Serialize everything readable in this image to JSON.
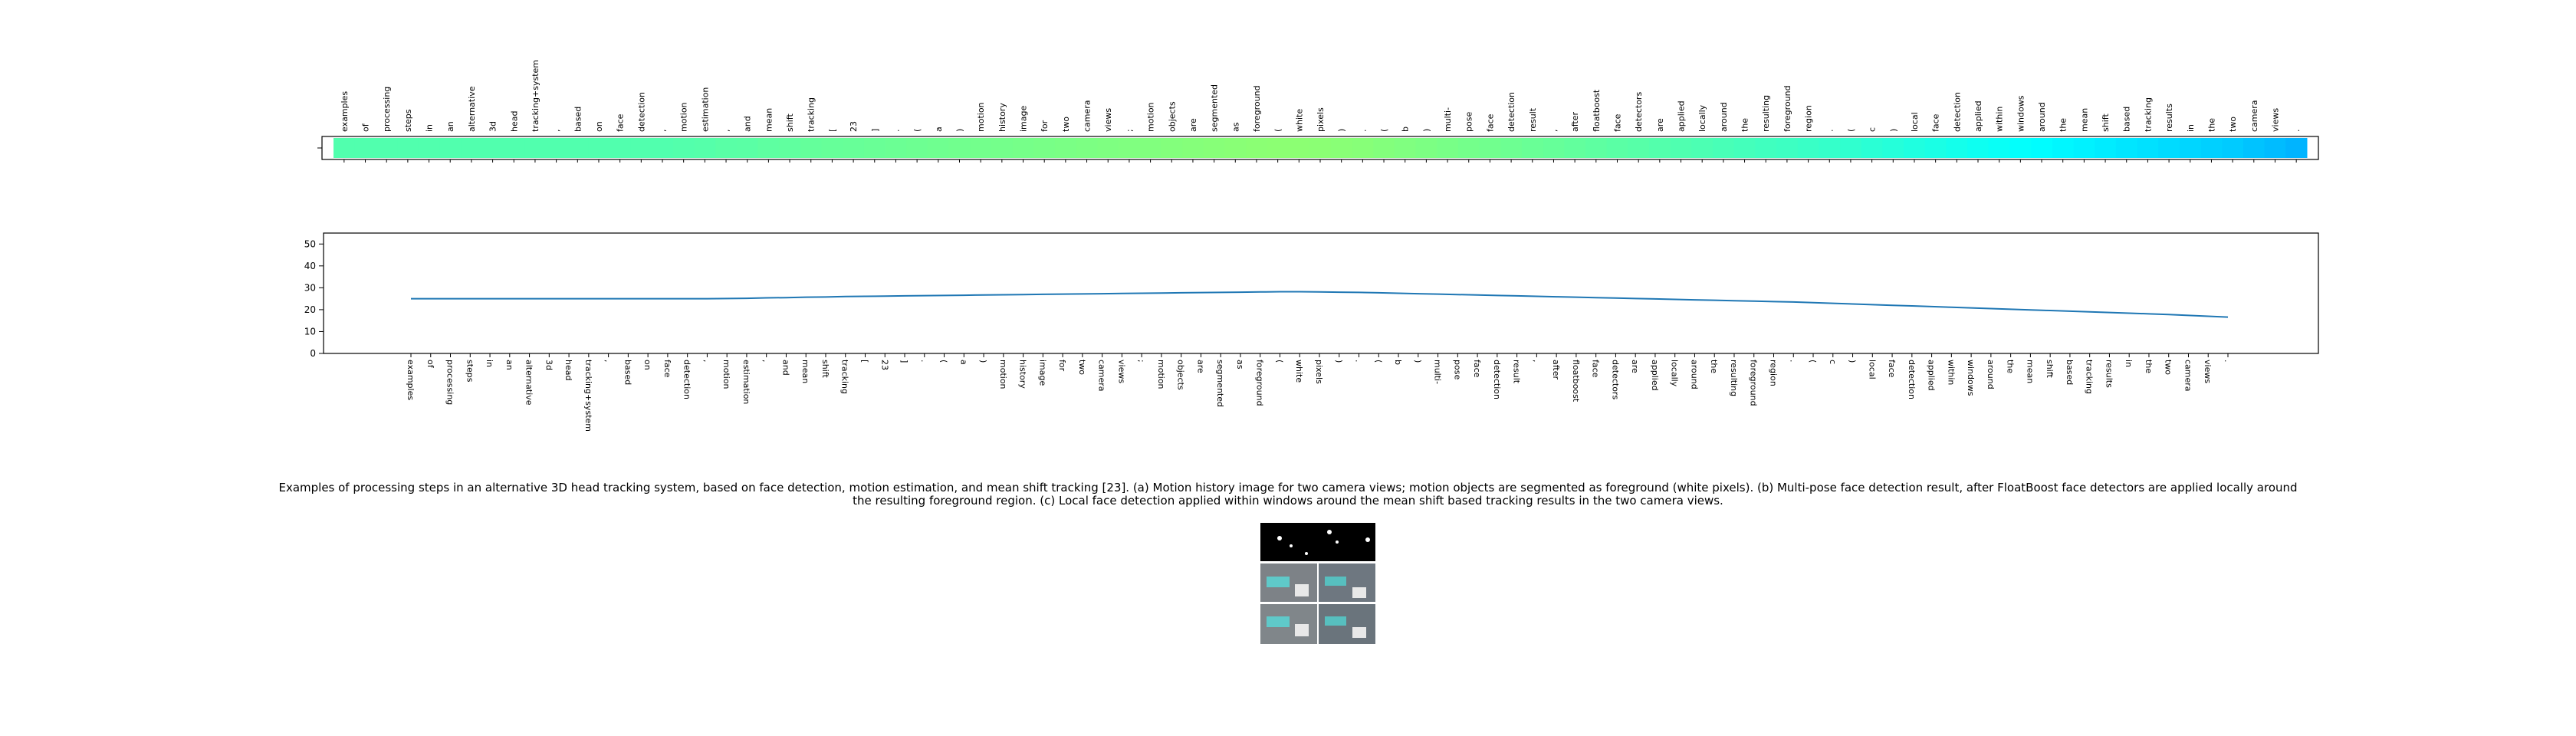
{
  "chart_data": [
    {
      "type": "heatmap",
      "colormap": "jet",
      "categories": [
        "examples",
        "of",
        "processing",
        "steps",
        "in",
        "an",
        "alternative",
        "3d",
        "head",
        "tracking+system",
        ",",
        "based",
        "on",
        "face",
        "detection",
        ",",
        "motion",
        "estimation",
        ",",
        "and",
        "mean",
        "shift",
        "tracking",
        "[",
        "23",
        "]",
        ".",
        "(",
        "a",
        ")",
        "motion",
        "history",
        "image",
        "for",
        "two",
        "camera",
        "views",
        ";",
        "motion",
        "objects",
        "are",
        "segmented",
        "as",
        "foreground",
        "(",
        "white",
        "pixels",
        ")",
        ".",
        "(",
        "b",
        ")",
        "multi-",
        "pose",
        "face",
        "detection",
        "result",
        ",",
        "after",
        "floatboost",
        "face",
        "detectors",
        "are",
        "applied",
        "locally",
        "around",
        "the",
        "resulting",
        "foreground",
        "region",
        ".",
        "(",
        "c",
        ")",
        "local",
        "face",
        "detection",
        "applied",
        "within",
        "windows",
        "around",
        "the",
        "mean",
        "shift",
        "based",
        "tracking",
        "results",
        "in",
        "the",
        "two",
        "camera",
        "views",
        "."
      ],
      "values": [
        25,
        25,
        25,
        25,
        25,
        25,
        25,
        25,
        25,
        25,
        25,
        25,
        25,
        25,
        25,
        25,
        25.1,
        25.2,
        25.4,
        25.5,
        25.7,
        25.8,
        26,
        26.1,
        26.2,
        26.3,
        26.4,
        26.5,
        26.6,
        26.7,
        26.8,
        26.9,
        27,
        27.1,
        27.2,
        27.3,
        27.4,
        27.5,
        27.6,
        27.7,
        27.8,
        27.9,
        28,
        28.1,
        28.2,
        28.2,
        28.1,
        28,
        27.9,
        27.7,
        27.5,
        27.3,
        27.1,
        26.9,
        26.7,
        26.5,
        26.3,
        26.1,
        25.9,
        25.7,
        25.5,
        25.3,
        25.1,
        24.9,
        24.7,
        24.5,
        24.3,
        24.1,
        23.9,
        23.7,
        23.5,
        23.2,
        22.9,
        22.6,
        22.3,
        22,
        21.7,
        21.4,
        21.1,
        20.8,
        20.5,
        20.2,
        19.9,
        19.6,
        19.3,
        19,
        18.7,
        18.4,
        18.1,
        17.8,
        17.4,
        17,
        16.6
      ],
      "vlim": [
        0,
        55
      ]
    },
    {
      "type": "line",
      "color": "#1f77b4",
      "categories": [
        "examples",
        "of",
        "processing",
        "steps",
        "in",
        "an",
        "alternative",
        "3d",
        "head",
        "tracking+system",
        ",",
        "based",
        "on",
        "face",
        "detection",
        ",",
        "motion",
        "estimation",
        ",",
        "and",
        "mean",
        "shift",
        "tracking",
        "[",
        "23",
        "]",
        ".",
        "(",
        "a",
        ")",
        "motion",
        "history",
        "image",
        "for",
        "two",
        "camera",
        "views",
        ";",
        "motion",
        "objects",
        "are",
        "segmented",
        "as",
        "foreground",
        "(",
        "white",
        "pixels",
        ")",
        ".",
        "(",
        "b",
        ")",
        "multi-",
        "pose",
        "face",
        "detection",
        "result",
        ",",
        "after",
        "floatboost",
        "face",
        "detectors",
        "are",
        "applied",
        "locally",
        "around",
        "the",
        "resulting",
        "foreground",
        "region",
        ".",
        "(",
        "c",
        ")",
        "local",
        "face",
        "detection",
        "applied",
        "within",
        "windows",
        "around",
        "the",
        "mean",
        "shift",
        "based",
        "tracking",
        "results",
        "in",
        "the",
        "two",
        "camera",
        "views",
        "."
      ],
      "values": [
        25,
        25,
        25,
        25,
        25,
        25,
        25,
        25,
        25,
        25,
        25,
        25,
        25,
        25,
        25,
        25,
        25.1,
        25.2,
        25.4,
        25.5,
        25.7,
        25.8,
        26,
        26.1,
        26.2,
        26.3,
        26.4,
        26.5,
        26.6,
        26.7,
        26.8,
        26.9,
        27,
        27.1,
        27.2,
        27.3,
        27.4,
        27.5,
        27.6,
        27.7,
        27.8,
        27.9,
        28,
        28.1,
        28.2,
        28.2,
        28.1,
        28,
        27.9,
        27.7,
        27.5,
        27.3,
        27.1,
        26.9,
        26.7,
        26.5,
        26.3,
        26.1,
        25.9,
        25.7,
        25.5,
        25.3,
        25.1,
        24.9,
        24.7,
        24.5,
        24.3,
        24.1,
        23.9,
        23.7,
        23.5,
        23.2,
        22.9,
        22.6,
        22.3,
        22,
        21.7,
        21.4,
        21.1,
        20.8,
        20.5,
        20.2,
        19.9,
        19.6,
        19.3,
        19,
        18.7,
        18.4,
        18.1,
        17.8,
        17.4,
        17,
        16.6
      ],
      "ylim": [
        0,
        55
      ],
      "yticks": [
        0,
        10,
        20,
        30,
        40,
        50
      ]
    }
  ],
  "caption": "Examples of processing steps in an alternative 3D head tracking system, based on face detection, motion estimation, and mean shift tracking [23]. (a) Motion history image for two camera views; motion objects are segmented as foreground (white pixels). (b) Multi-pose face detection result, after FloatBoost face detectors are applied locally around the resulting foreground region. (c) Local face detection applied within windows around the mean shift based tracking results in the two camera views."
}
